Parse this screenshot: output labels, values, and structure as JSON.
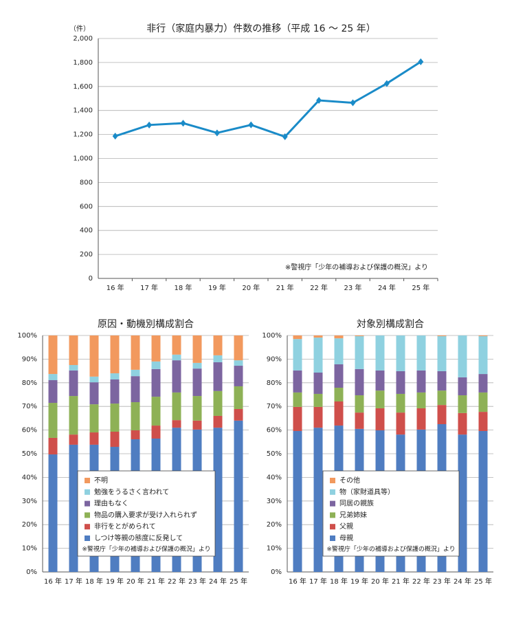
{
  "chart_data": [
    {
      "type": "line",
      "title": "非行（家庭内暴力）件数の推移（平成 16 ～ 25 年）",
      "y_label": "（件）",
      "note": "※警視庁「少年の補導および保護の概況」より",
      "categories": [
        "16 年",
        "17 年",
        "18 年",
        "19 年",
        "20 年",
        "21 年",
        "22 年",
        "23 年",
        "24 年",
        "25 年"
      ],
      "values": [
        1186,
        1279,
        1294,
        1213,
        1280,
        1181,
        1484,
        1464,
        1625,
        1806
      ],
      "color": "#1a8bc8",
      "ylim": [
        0,
        2000
      ],
      "yticks": [
        0,
        200,
        400,
        600,
        800,
        {
          "value": 1000,
          "label": "1,000"
        },
        {
          "value": 1200,
          "label": "1,200"
        },
        {
          "value": 1400,
          "label": "1,400"
        },
        {
          "value": 1600,
          "label": "1,600"
        },
        {
          "value": 1800,
          "label": "1,800"
        },
        {
          "value": 2000,
          "label": "2,000"
        }
      ],
      "grid": true
    },
    {
      "type": "stacked_bar",
      "title": "原因・動機別構成割合",
      "note": "※警視庁「少年の補導および保護の概況」より",
      "categories": [
        "16 年",
        "17 年",
        "18 年",
        "19 年",
        "20 年",
        "21 年",
        "22 年",
        "23 年",
        "24 年",
        "25 年"
      ],
      "series": [
        {
          "name": "しつけ等親の態度に反発して",
          "color": "#4f7dc1",
          "values": [
            49.7,
            53.8,
            53.8,
            52.9,
            56.1,
            56.4,
            61.0,
            60.2,
            61.0,
            64.0
          ]
        },
        {
          "name": "非行をとがめられて",
          "color": "#cf4f4b",
          "values": [
            7.0,
            4.3,
            5.2,
            6.4,
            3.8,
            5.5,
            3.2,
            3.8,
            5.0,
            4.9
          ]
        },
        {
          "name": "物品の購入要求が受け入れられず",
          "color": "#8eb156",
          "values": [
            14.8,
            16.3,
            11.9,
            11.9,
            11.9,
            12.2,
            11.7,
            10.4,
            10.5,
            9.6
          ]
        },
        {
          "name": "理由もなく",
          "color": "#7c65a0",
          "values": [
            9.6,
            10.8,
            9.3,
            10.2,
            11.0,
            11.7,
            13.6,
            11.6,
            12.2,
            8.7
          ]
        },
        {
          "name": "勉強をうるさく言われて",
          "color": "#8fd1e0",
          "values": [
            2.6,
            2.3,
            2.4,
            2.6,
            2.7,
            3.2,
            2.4,
            2.4,
            2.9,
            2.3
          ]
        },
        {
          "name": "不明",
          "color": "#f2995e",
          "values": [
            16.3,
            12.5,
            17.4,
            16.0,
            14.5,
            11.0,
            8.1,
            11.6,
            8.4,
            10.5
          ]
        }
      ],
      "ylim": [
        0,
        100
      ],
      "yticks": [
        {
          "value": 0,
          "label": "0%"
        },
        {
          "value": 10,
          "label": "10%"
        },
        {
          "value": 20,
          "label": "20%"
        },
        {
          "value": 30,
          "label": "30%"
        },
        {
          "value": 40,
          "label": "40%"
        },
        {
          "value": 50,
          "label": "50%"
        },
        {
          "value": 60,
          "label": "60%"
        },
        {
          "value": 70,
          "label": "70%"
        },
        {
          "value": 80,
          "label": "80%"
        },
        {
          "value": 90,
          "label": "90%"
        },
        {
          "value": 100,
          "label": "100%"
        }
      ],
      "grid": true
    },
    {
      "type": "stacked_bar",
      "title": "対象別構成割合",
      "note": "※警視庁「少年の補導および保護の概況」より",
      "categories": [
        "16 年",
        "17 年",
        "18 年",
        "19 年",
        "20 年",
        "21 年",
        "22 年",
        "23 年",
        "24 年",
        "25 年"
      ],
      "series": [
        {
          "name": "母親",
          "color": "#4f7dc1",
          "values": [
            59.6,
            61.0,
            61.9,
            60.5,
            59.9,
            58.1,
            60.2,
            62.5,
            58.1,
            59.6
          ]
        },
        {
          "name": "父親",
          "color": "#cf4f4b",
          "values": [
            10.2,
            8.8,
            10.2,
            6.9,
            9.3,
            9.3,
            9.0,
            8.1,
            9.1,
            8.1
          ]
        },
        {
          "name": "兄弟姉妹",
          "color": "#8eb156",
          "values": [
            6.1,
            5.5,
            5.8,
            7.3,
            7.5,
            7.9,
            6.7,
            6.1,
            7.5,
            8.2
          ]
        },
        {
          "name": "同居の親族",
          "color": "#7c65a0",
          "values": [
            9.3,
            9.0,
            9.9,
            11.1,
            8.5,
            9.6,
            9.3,
            8.2,
            7.6,
            7.8
          ]
        },
        {
          "name": "物（家財道具等）",
          "color": "#8fd1e0",
          "values": [
            13.3,
            14.8,
            11.0,
            13.9,
            14.8,
            15.1,
            14.8,
            14.8,
            17.7,
            16.0
          ]
        },
        {
          "name": "その他",
          "color": "#f2995e",
          "values": [
            1.5,
            0.9,
            1.2,
            0.3,
            0,
            0,
            0,
            0.3,
            0,
            0.3
          ]
        }
      ],
      "ylim": [
        0,
        100
      ],
      "yticks": [
        {
          "value": 0,
          "label": "0%"
        },
        {
          "value": 10,
          "label": "10%"
        },
        {
          "value": 20,
          "label": "20%"
        },
        {
          "value": 30,
          "label": "30%"
        },
        {
          "value": 40,
          "label": "40%"
        },
        {
          "value": 50,
          "label": "50%"
        },
        {
          "value": 60,
          "label": "60%"
        },
        {
          "value": 70,
          "label": "70%"
        },
        {
          "value": 80,
          "label": "80%"
        },
        {
          "value": 90,
          "label": "90%"
        },
        {
          "value": 100,
          "label": "100%"
        }
      ],
      "grid": true
    }
  ]
}
